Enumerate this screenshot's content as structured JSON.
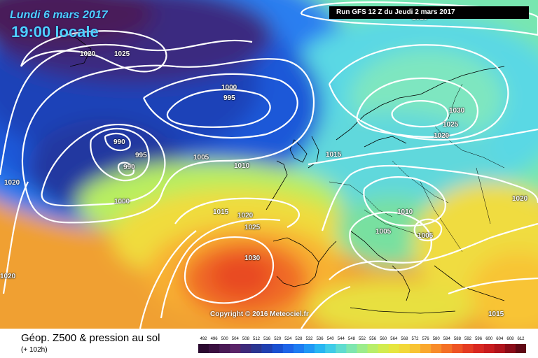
{
  "header": {
    "date_line": "Lundi 6 mars 2017",
    "time_line": "19:00 locale",
    "run_info": "Run GFS 12 Z du Jeudi 2 mars 2017"
  },
  "copyright": "Copyright © 2016 Meteociel.fr",
  "footer": {
    "title": "Géop. Z500 & pression au sol",
    "subtitle": "(+ 102h)"
  },
  "legend": {
    "values": [
      "492",
      "496",
      "500",
      "504",
      "508",
      "512",
      "516",
      "520",
      "524",
      "528",
      "532",
      "536",
      "540",
      "544",
      "548",
      "552",
      "556",
      "560",
      "564",
      "568",
      "572",
      "576",
      "580",
      "584",
      "588",
      "592",
      "596",
      "600",
      "604",
      "608",
      "612"
    ],
    "colors": [
      "#2b0a30",
      "#3a1040",
      "#4a1a55",
      "#5a2468",
      "#3d2a7a",
      "#2a3590",
      "#2040b0",
      "#1a50d0",
      "#1e64e8",
      "#1e7cf2",
      "#2098f5",
      "#28b6f2",
      "#40cce8",
      "#60dcd0",
      "#7ee6b0",
      "#9cec8c",
      "#b8ee6a",
      "#d2ec50",
      "#e6e640",
      "#f2d83a",
      "#f8c434",
      "#faa82e",
      "#f88c2a",
      "#f47026",
      "#ee5424",
      "#e43c22",
      "#d82820",
      "#c81c1e",
      "#b0141c",
      "#8a0c18",
      "#600814"
    ]
  },
  "pressure_labels": [
    {
      "text": "1020"
    },
    {
      "text": "1025"
    },
    {
      "text": "1000"
    },
    {
      "text": "995"
    },
    {
      "text": "990"
    },
    {
      "text": "995"
    },
    {
      "text": "990"
    },
    {
      "text": "1005"
    },
    {
      "text": "1010"
    },
    {
      "text": "1000"
    },
    {
      "text": "1020"
    },
    {
      "text": "1015"
    },
    {
      "text": "1030"
    },
    {
      "text": "1025"
    },
    {
      "text": "1020"
    },
    {
      "text": "1015"
    },
    {
      "text": "1020"
    },
    {
      "text": "1025"
    },
    {
      "text": "1010"
    },
    {
      "text": "1005"
    },
    {
      "text": "1005"
    },
    {
      "text": "1030"
    },
    {
      "text": "1020"
    },
    {
      "text": "1020"
    },
    {
      "text": "1015"
    },
    {
      "text": "1015"
    }
  ]
}
